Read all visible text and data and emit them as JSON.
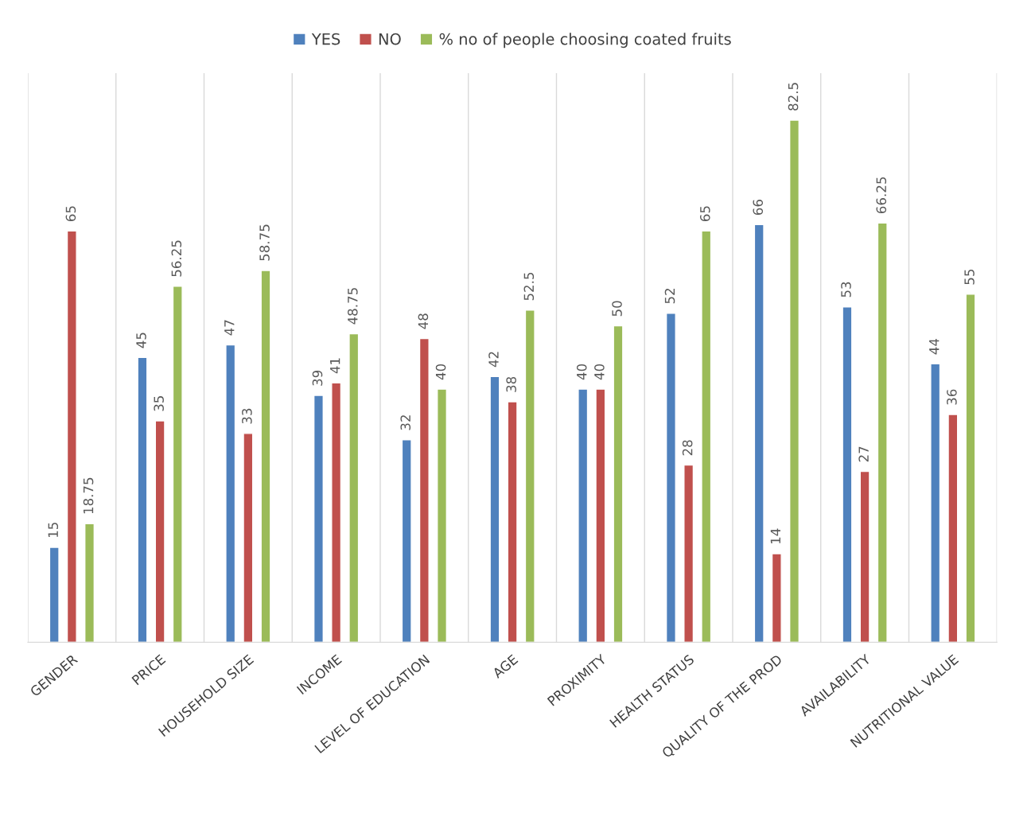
{
  "chart_data": {
    "type": "bar",
    "categories": [
      "GENDER",
      "PRICE",
      "HOUSEHOLD SIZE",
      "INCOME",
      "LEVEL OF EDUCATION",
      "AGE",
      "PROXIMITY",
      "HEALTH STATUS",
      "QUALITY OF THE PROD",
      "AVAILABILITY",
      "NUTRITIONAL VALUE"
    ],
    "series": [
      {
        "name": "YES",
        "color": "#4f81bd",
        "values": [
          15,
          45,
          47,
          39,
          32,
          42,
          40,
          52,
          66,
          53,
          44
        ]
      },
      {
        "name": "NO",
        "color": "#c0504d",
        "values": [
          65,
          35,
          33,
          41,
          48,
          38,
          40,
          28,
          14,
          27,
          36
        ]
      },
      {
        "name": "% no of people choosing coated fruits",
        "color": "#9bbb59",
        "values": [
          18.75,
          56.25,
          58.75,
          48.75,
          40,
          52.5,
          50,
          65,
          82.5,
          66.25,
          55
        ]
      }
    ],
    "data_labels": true,
    "tick_labels": "x",
    "grid": "x",
    "legend": "top"
  }
}
